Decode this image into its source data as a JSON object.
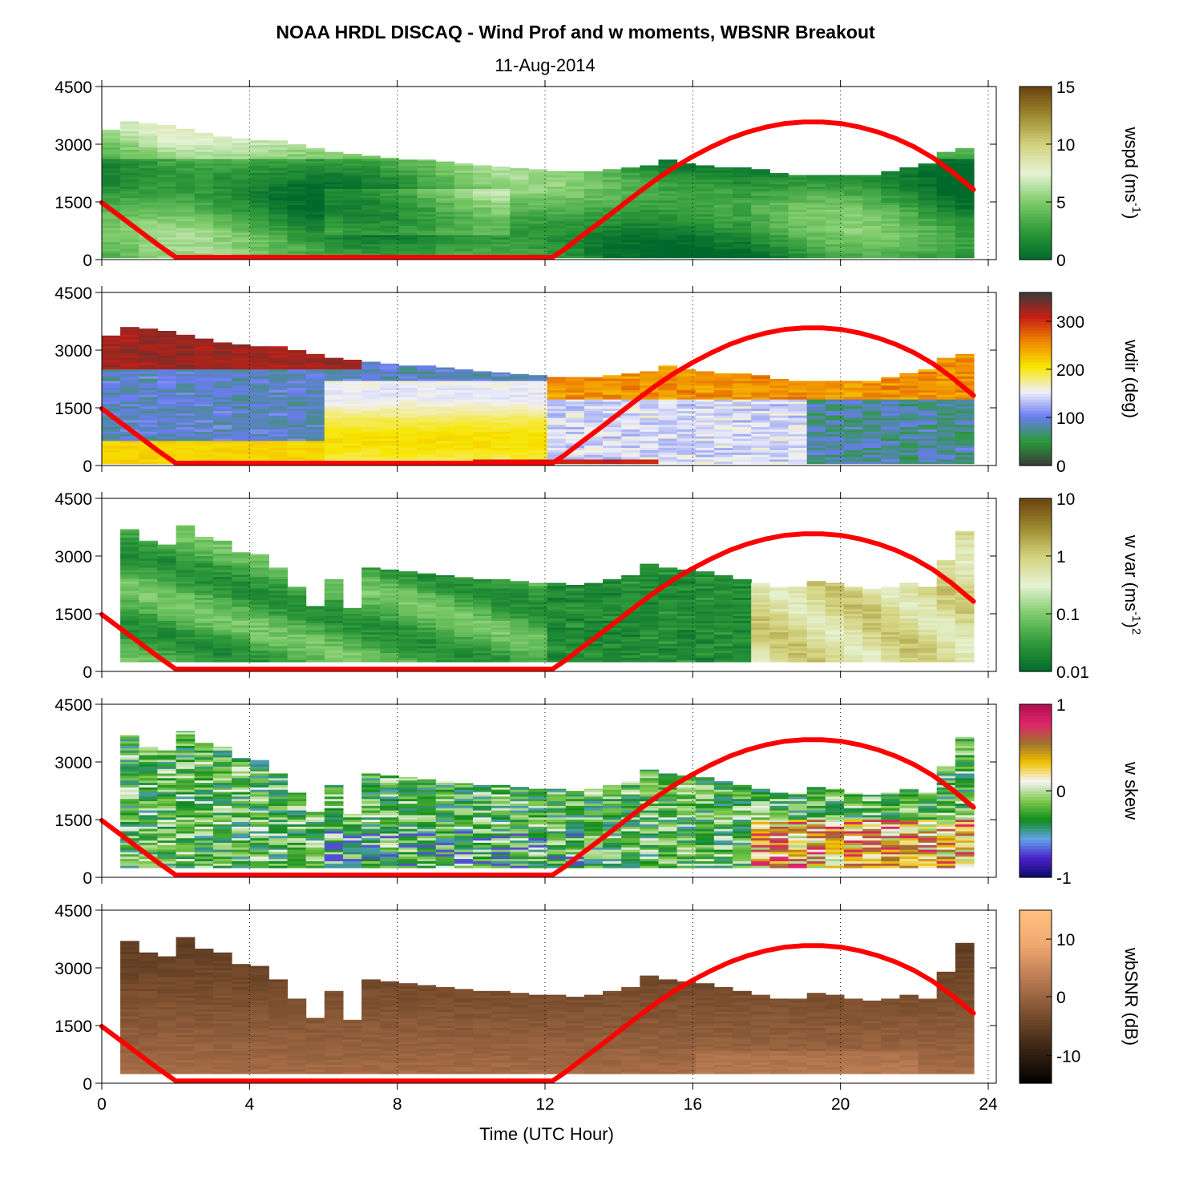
{
  "title": "NOAA HRDL DISCAQ - Wind Prof and w moments, WBSNR Breakout",
  "subtitle": "11-Aug-2014",
  "colors": {
    "boundary_line": "#ff0000",
    "axes": "#000000",
    "background": "#ffffff"
  },
  "chart_data": {
    "type": "heatmap",
    "xlabel": "Time (UTC Hour)",
    "xlim": [
      0,
      24
    ],
    "xticks": [
      "0",
      "4",
      "8",
      "12",
      "16",
      "20",
      "24"
    ],
    "xtick_values": [
      0,
      4,
      8,
      12,
      16,
      20,
      24
    ],
    "gridlines_x": [
      4,
      8,
      12,
      16,
      20
    ],
    "ylim": [
      0,
      4500
    ],
    "yticks": [
      "0",
      "1500",
      "3000",
      "4500"
    ],
    "ytick_values": [
      0,
      1500,
      3000,
      4500
    ],
    "boundary_layer_line": {
      "x": [
        0,
        0.5,
        1,
        1.5,
        2,
        3,
        4,
        5,
        6,
        7,
        8,
        9,
        10,
        11,
        12,
        12.2,
        12.5,
        13,
        13.5,
        14,
        14.5,
        15,
        15.5,
        16,
        16.5,
        17,
        17.5,
        18,
        18.5,
        19,
        19.5,
        20,
        20.5,
        21,
        21.5,
        22,
        22.5,
        23,
        23.6
      ],
      "y": [
        1480,
        1120,
        760,
        400,
        60,
        60,
        60,
        60,
        60,
        60,
        60,
        60,
        60,
        60,
        60,
        60,
        250,
        620,
        980,
        1350,
        1720,
        2080,
        2400,
        2680,
        2930,
        3150,
        3320,
        3450,
        3540,
        3580,
        3580,
        3540,
        3450,
        3320,
        3150,
        2930,
        2650,
        2300,
        1820
      ]
    },
    "panels": [
      {
        "id": "wspd",
        "colorbar_label": "wspd (ms",
        "colorbar_label_sup": "-1",
        "colorbar_label_end": ")",
        "colorbar_ticks": [
          "0",
          "5",
          "10",
          "15"
        ],
        "colorbar_tick_positions": [
          0,
          0.333,
          0.667,
          1
        ],
        "colormap": [
          "#006a2c",
          "#2f9a3a",
          "#7ecb6a",
          "#e6f3d4",
          "#d3d27e",
          "#9c8a2e",
          "#6b4312"
        ],
        "top_profile": [
          3380,
          3600,
          3560,
          3500,
          3400,
          3300,
          3200,
          3150,
          3100,
          3100,
          3000,
          2900,
          2800,
          2750,
          2700,
          2650,
          2600,
          2600,
          2550,
          2500,
          2450,
          2420,
          2380,
          2350,
          2300,
          2300,
          2300,
          2350,
          2400,
          2450,
          2600,
          2500,
          2450,
          2400,
          2400,
          2350,
          2250,
          2200,
          2200,
          2200,
          2200,
          2200,
          2300,
          2400,
          2500,
          2800,
          2900
        ],
        "bottom_profile": [
          50,
          50,
          50,
          50,
          50,
          50,
          50,
          50,
          50,
          50,
          50,
          50,
          50,
          50,
          50,
          50,
          50,
          50,
          50,
          50,
          50,
          50,
          50,
          50,
          50,
          50,
          50,
          50,
          50,
          50,
          50,
          50,
          50,
          50,
          50,
          50,
          50,
          50,
          50,
          50,
          50,
          50,
          50,
          50,
          50,
          50,
          50
        ]
      },
      {
        "id": "wdir",
        "colorbar_label": "wdir (deg)",
        "colorbar_ticks": [
          "0",
          "100",
          "200",
          "300"
        ],
        "colorbar_tick_positions": [
          0,
          0.278,
          0.556,
          0.833
        ],
        "colormap": [
          "#3a3a3a",
          "#2b9a3a",
          "#6a7cf0",
          "#f0f0f8",
          "#f7e600",
          "#f08a00",
          "#c81e14",
          "#3a3a3a"
        ],
        "top_profile": [
          3380,
          3600,
          3560,
          3500,
          3400,
          3300,
          3200,
          3150,
          3100,
          3100,
          3000,
          2900,
          2800,
          2750,
          2700,
          2650,
          2600,
          2600,
          2550,
          2500,
          2450,
          2420,
          2380,
          2350,
          2300,
          2300,
          2300,
          2350,
          2400,
          2450,
          2600,
          2500,
          2450,
          2400,
          2400,
          2350,
          2250,
          2200,
          2200,
          2200,
          2200,
          2200,
          2300,
          2400,
          2500,
          2800,
          2900
        ],
        "bottom_profile": [
          50,
          50,
          50,
          50,
          50,
          50,
          50,
          50,
          50,
          50,
          50,
          50,
          50,
          50,
          50,
          50,
          50,
          50,
          50,
          50,
          50,
          50,
          50,
          50,
          50,
          50,
          50,
          50,
          50,
          50,
          50,
          50,
          50,
          50,
          50,
          50,
          50,
          50,
          50,
          50,
          50,
          50,
          50,
          50,
          50,
          50,
          50
        ]
      },
      {
        "id": "wvar",
        "colorbar_label": "w var (ms",
        "colorbar_label_sup": "-1",
        "colorbar_label_end": ")",
        "colorbar_label_sup2": "2",
        "colorbar_ticks": [
          "0.01",
          "0.1",
          "1",
          "10"
        ],
        "colorbar_tick_positions": [
          0,
          0.333,
          0.667,
          1
        ],
        "colormap": [
          "#006a2c",
          "#2f9a3a",
          "#7ecb6a",
          "#e6f3d4",
          "#d3d27e",
          "#9c8a2e",
          "#6b4312"
        ],
        "top_profile": [
          0,
          3700,
          3400,
          3300,
          3800,
          3500,
          3400,
          3100,
          3050,
          2700,
          2200,
          1700,
          2400,
          1650,
          2700,
          2650,
          2600,
          2550,
          2500,
          2450,
          2400,
          2400,
          2350,
          2300,
          2300,
          2250,
          2300,
          2400,
          2500,
          2800,
          2700,
          2650,
          2600,
          2500,
          2400,
          2300,
          2200,
          2200,
          2350,
          2300,
          2200,
          2150,
          2200,
          2300,
          2200,
          2900,
          3650
        ],
        "bottom_profile": [
          0,
          250,
          250,
          250,
          250,
          250,
          250,
          250,
          250,
          250,
          250,
          250,
          250,
          250,
          250,
          250,
          250,
          250,
          250,
          250,
          250,
          250,
          250,
          250,
          250,
          250,
          250,
          250,
          250,
          250,
          250,
          250,
          250,
          250,
          250,
          250,
          250,
          250,
          250,
          250,
          250,
          250,
          250,
          250,
          250,
          250,
          250
        ]
      },
      {
        "id": "wskew",
        "colorbar_label": "w skew",
        "colorbar_ticks": [
          "-1",
          "0",
          "1"
        ],
        "colorbar_tick_positions": [
          0,
          0.5,
          1
        ],
        "colormap": [
          "#0a0a6a",
          "#4a22c8",
          "#62a2ea",
          "#0f8c1a",
          "#7ec84e",
          "#f5f5f5",
          "#f0c000",
          "#a07030",
          "#e0246a",
          "#b01050"
        ],
        "top_profile": [
          0,
          3700,
          3400,
          3300,
          3800,
          3500,
          3400,
          3100,
          3050,
          2700,
          2200,
          1700,
          2400,
          1650,
          2700,
          2650,
          2600,
          2550,
          2500,
          2450,
          2400,
          2400,
          2350,
          2300,
          2300,
          2250,
          2300,
          2400,
          2500,
          2800,
          2700,
          2650,
          2600,
          2500,
          2400,
          2300,
          2200,
          2200,
          2350,
          2300,
          2200,
          2150,
          2200,
          2300,
          2200,
          2900,
          3650
        ],
        "bottom_profile": [
          0,
          250,
          250,
          250,
          250,
          250,
          250,
          250,
          250,
          250,
          250,
          250,
          250,
          250,
          250,
          250,
          250,
          250,
          250,
          250,
          250,
          250,
          250,
          250,
          250,
          250,
          250,
          250,
          250,
          250,
          250,
          250,
          250,
          250,
          250,
          250,
          250,
          250,
          250,
          250,
          250,
          250,
          250,
          250,
          250,
          250,
          250
        ]
      },
      {
        "id": "wbsnr",
        "colorbar_label": "wbSNR (dB)",
        "colorbar_ticks": [
          "-10",
          "0",
          "10"
        ],
        "colorbar_tick_positions": [
          0.16,
          0.5,
          0.833
        ],
        "colormap": [
          "#000000",
          "#3a2414",
          "#7a4e2e",
          "#b87a52",
          "#f0a870",
          "#ffc080"
        ],
        "top_profile": [
          0,
          3700,
          3400,
          3300,
          3800,
          3500,
          3400,
          3100,
          3050,
          2700,
          2200,
          1700,
          2400,
          1650,
          2700,
          2650,
          2600,
          2550,
          2500,
          2450,
          2400,
          2400,
          2350,
          2300,
          2300,
          2250,
          2300,
          2400,
          2500,
          2800,
          2700,
          2650,
          2600,
          2500,
          2400,
          2300,
          2200,
          2200,
          2350,
          2300,
          2200,
          2150,
          2200,
          2300,
          2200,
          2900,
          3650
        ],
        "bottom_profile": [
          0,
          250,
          250,
          250,
          250,
          250,
          250,
          250,
          250,
          250,
          250,
          250,
          250,
          250,
          250,
          250,
          250,
          250,
          250,
          250,
          250,
          250,
          250,
          250,
          250,
          250,
          250,
          250,
          250,
          250,
          250,
          250,
          250,
          250,
          250,
          250,
          250,
          250,
          250,
          250,
          250,
          250,
          250,
          250,
          250,
          250,
          250
        ]
      }
    ]
  }
}
